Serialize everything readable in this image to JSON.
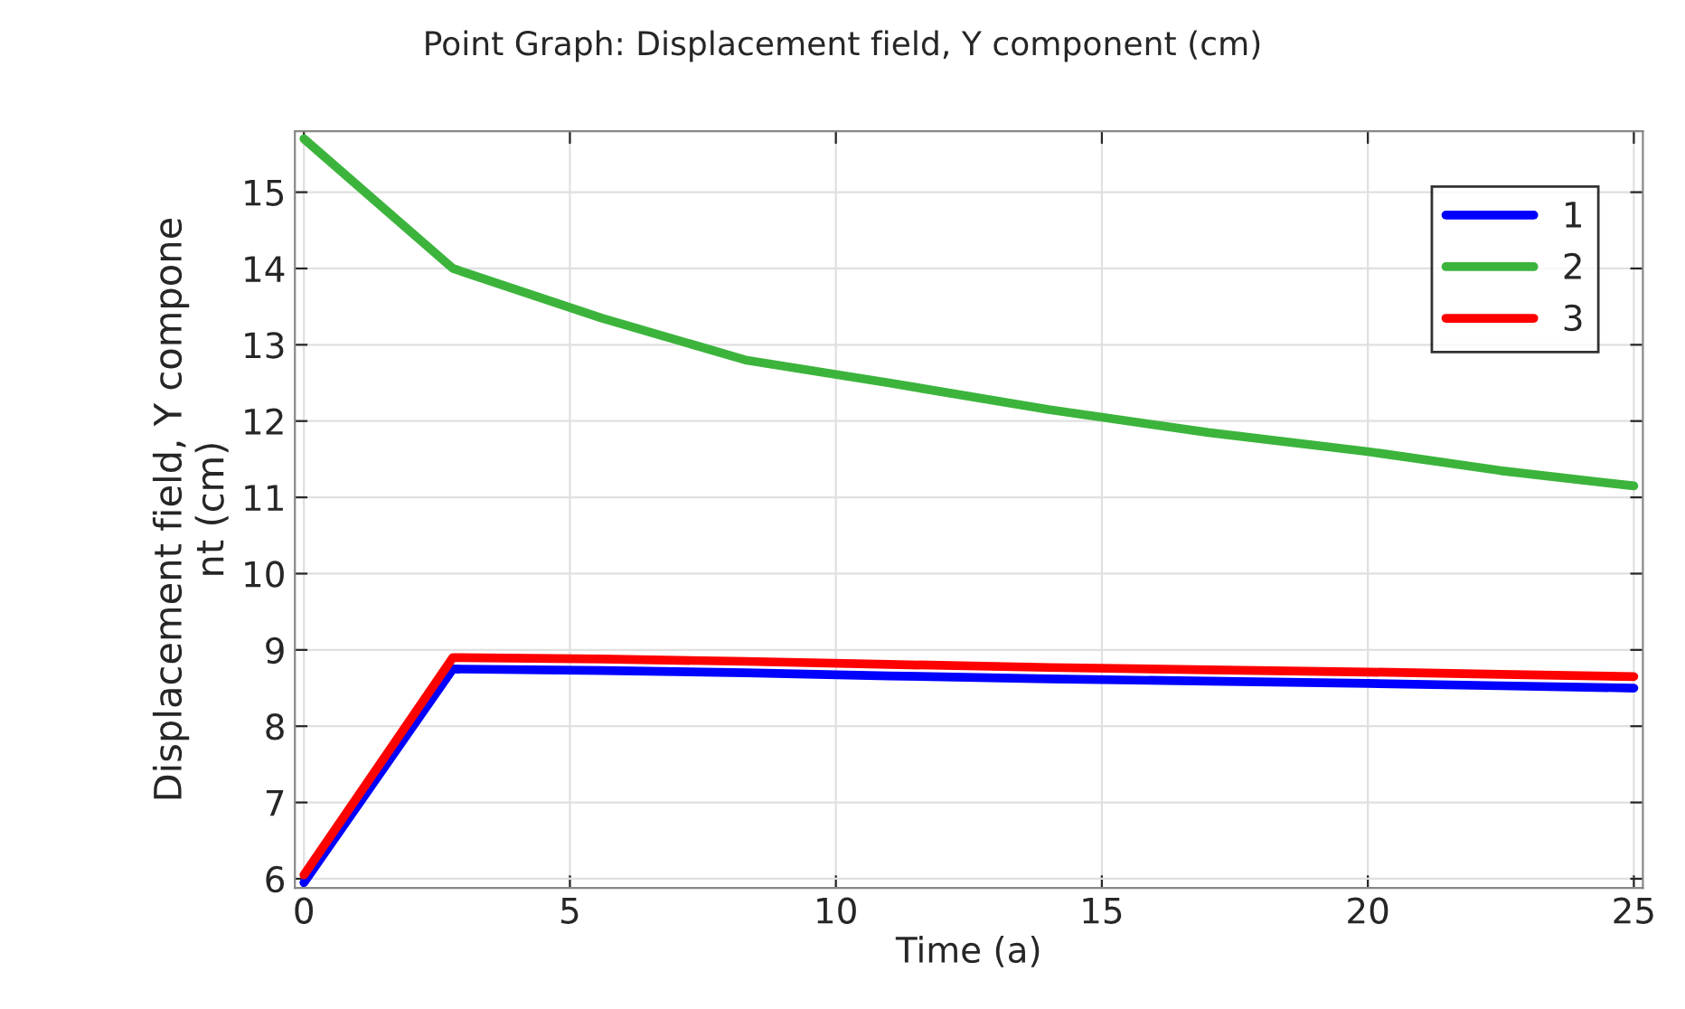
{
  "chart_data": {
    "type": "line",
    "title": "Point Graph: Displacement field, Y component (cm)",
    "xlabel": "Time (a)",
    "ylabel": "Displacement field, Y compone\nnt (cm)",
    "xlim": [
      -0.17,
      25.17
    ],
    "ylim": [
      5.88,
      15.8
    ],
    "xticks": [
      0,
      5,
      10,
      15,
      20,
      25
    ],
    "yticks": [
      6,
      7,
      8,
      9,
      10,
      11,
      12,
      13,
      14,
      15
    ],
    "grid": true,
    "legend": "top right",
    "line_style": "solid",
    "marker": "none",
    "series": [
      {
        "name": "1",
        "color": "#0000ff",
        "x": [
          0,
          2.8,
          5.6,
          8.3,
          11,
          14,
          17,
          20,
          22.5,
          25
        ],
        "values": [
          5.95,
          8.75,
          8.73,
          8.7,
          8.66,
          8.62,
          8.59,
          8.56,
          8.53,
          8.5
        ]
      },
      {
        "name": "2",
        "color": "#3cb43c",
        "x": [
          0,
          2.8,
          5.6,
          8.3,
          11,
          14,
          17,
          20,
          22.5,
          25
        ],
        "values": [
          15.7,
          14.0,
          13.35,
          12.8,
          12.5,
          12.15,
          11.85,
          11.6,
          11.35,
          11.15
        ]
      },
      {
        "name": "3",
        "color": "#ff0000",
        "x": [
          0,
          2.8,
          5.6,
          8.3,
          11,
          14,
          17,
          20,
          22.5,
          25
        ],
        "values": [
          6.05,
          8.9,
          8.88,
          8.85,
          8.81,
          8.77,
          8.74,
          8.71,
          8.68,
          8.65
        ]
      }
    ]
  }
}
